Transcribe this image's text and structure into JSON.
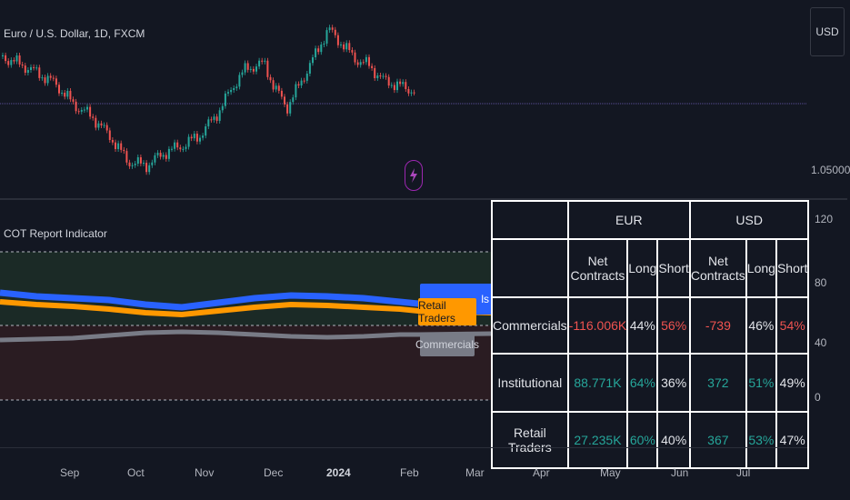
{
  "header": {
    "symbol_title": "Euro / U.S. Dollar, 1D, FXCM",
    "currency_button": "USD",
    "price_label": "1.05000"
  },
  "indicator": {
    "title": "COT Report Indicator",
    "scale_labels": [
      "120",
      "80",
      "40",
      "0"
    ],
    "tags": {
      "retail": "Retail Traders",
      "commercials": "Commercials",
      "institutional_partial": "ls"
    },
    "colors": {
      "retail": "#ff9800",
      "institutional": "#2962ff",
      "commercials": "#787b86",
      "positive": "#26a69a",
      "negative": "#ef5350",
      "upper_zone": "#1b2a26",
      "lower_zone": "#2a1c22"
    }
  },
  "table": {
    "groups": [
      "EUR",
      "USD"
    ],
    "headers": [
      "Net Contracts",
      "Long",
      "Short",
      "Net Contracts",
      "Long",
      "Short"
    ],
    "rows": [
      {
        "label": "Commercials",
        "cells": [
          {
            "v": "-116.006K",
            "tone": "neg"
          },
          {
            "v": "44%",
            "tone": "neu"
          },
          {
            "v": "56%",
            "tone": "neg"
          },
          {
            "v": "-739",
            "tone": "neg"
          },
          {
            "v": "46%",
            "tone": "neu"
          },
          {
            "v": "54%",
            "tone": "neg"
          }
        ]
      },
      {
        "label": "Institutional",
        "cells": [
          {
            "v": "88.771K",
            "tone": "pos"
          },
          {
            "v": "64%",
            "tone": "pos"
          },
          {
            "v": "36%",
            "tone": "neu"
          },
          {
            "v": "372",
            "tone": "pos"
          },
          {
            "v": "51%",
            "tone": "pos"
          },
          {
            "v": "49%",
            "tone": "neu"
          }
        ]
      },
      {
        "label": "Retail Traders",
        "cells": [
          {
            "v": "27.235K",
            "tone": "pos"
          },
          {
            "v": "60%",
            "tone": "pos"
          },
          {
            "v": "40%",
            "tone": "neu"
          },
          {
            "v": "367",
            "tone": "pos"
          },
          {
            "v": "53%",
            "tone": "pos"
          },
          {
            "v": "47%",
            "tone": "neu"
          }
        ]
      }
    ]
  },
  "time_axis": {
    "months": [
      "Sep",
      "Oct",
      "Nov",
      "Dec",
      "2024",
      "Feb",
      "Mar",
      "Apr",
      "May",
      "Jun",
      "Jul"
    ]
  },
  "icons": {
    "replay": "lightning-icon"
  }
}
